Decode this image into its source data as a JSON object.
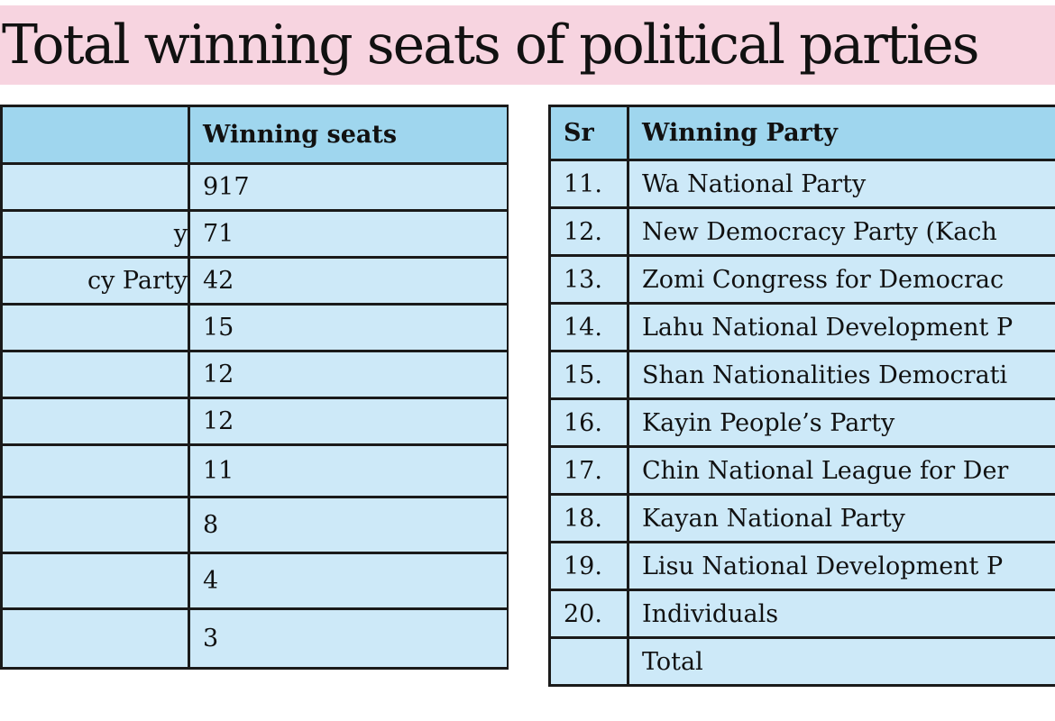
{
  "title": "Total winning seats of political parties",
  "left_table": {
    "header_party": "",
    "header_seats": "Winning seats",
    "rows": [
      {
        "party": "",
        "seats": "917"
      },
      {
        "party": "y",
        "seats": "71"
      },
      {
        "party": "cy Party",
        "seats": "42"
      },
      {
        "party": "",
        "seats": "15"
      },
      {
        "party": "",
        "seats": "12"
      },
      {
        "party": "",
        "seats": "12"
      },
      {
        "party": "",
        "seats": "11"
      },
      {
        "party": "",
        "seats": "8"
      },
      {
        "party": "",
        "seats": "4"
      },
      {
        "party": "",
        "seats": "3"
      }
    ]
  },
  "right_table": {
    "header_sr": "Sr",
    "header_party": "Winning Party",
    "rows": [
      {
        "sr": "11.",
        "party": "Wa National Party"
      },
      {
        "sr": "12.",
        "party": "New Democracy Party (Kach"
      },
      {
        "sr": "13.",
        "party": "Zomi Congress for Democrac"
      },
      {
        "sr": "14.",
        "party": "Lahu National Development P"
      },
      {
        "sr": "15.",
        "party": "Shan Nationalities Democrati"
      },
      {
        "sr": "16.",
        "party": "Kayin People’s Party"
      },
      {
        "sr": "17.",
        "party": "Chin National League for Der"
      },
      {
        "sr": "18.",
        "party": "Kayan National Party"
      },
      {
        "sr": "19.",
        "party": "Lisu National Development P"
      },
      {
        "sr": "20.",
        "party": "Individuals"
      },
      {
        "sr": "",
        "party": "Total"
      }
    ]
  }
}
